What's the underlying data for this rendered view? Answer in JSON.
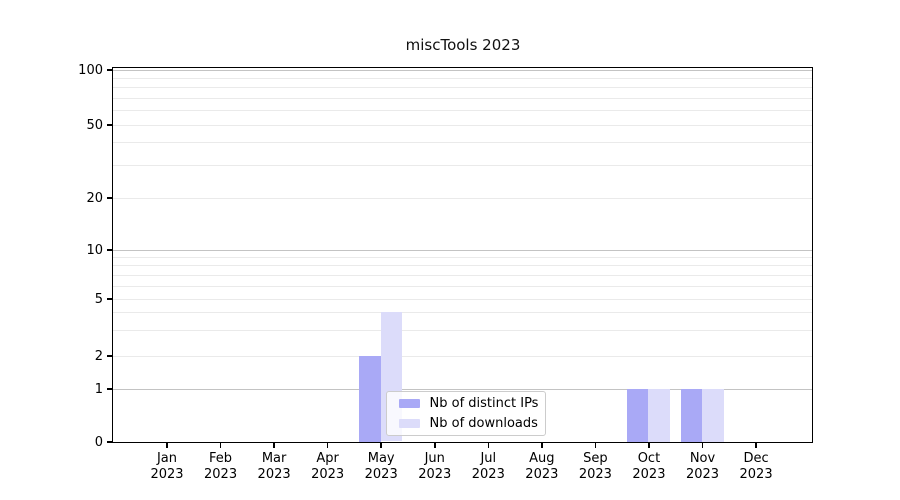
{
  "chart_data": {
    "type": "bar",
    "title": "miscTools 2023",
    "categories": [
      "Jan",
      "Feb",
      "Mar",
      "Apr",
      "May",
      "Jun",
      "Jul",
      "Aug",
      "Sep",
      "Oct",
      "Nov",
      "Dec"
    ],
    "x_tick_year": "2023",
    "series": [
      {
        "name": "Nb of distinct IPs",
        "color": "#a9a9f6",
        "values": [
          0,
          0,
          0,
          0,
          2,
          0,
          0,
          0,
          0,
          1,
          1,
          0
        ]
      },
      {
        "name": "Nb of downloads",
        "color": "#dcdcfa",
        "values": [
          0,
          0,
          0,
          0,
          4,
          0,
          0,
          0,
          0,
          1,
          1,
          0
        ]
      }
    ],
    "yscale": "symlog",
    "ylim": [
      0,
      100
    ],
    "yticks": [
      0,
      1,
      2,
      5,
      10,
      20,
      50,
      100
    ],
    "grid_major_values": [
      1,
      10,
      100
    ],
    "grid_minor_values": [
      2,
      3,
      4,
      5,
      6,
      7,
      8,
      9,
      20,
      30,
      40,
      50,
      60,
      70,
      80,
      90
    ],
    "grid": true,
    "legend_position": "lower-center-inside"
  },
  "colors": {
    "bar_distinct_ips": "#a9a9f6",
    "bar_downloads": "#dcdcfa",
    "grid_major": "#c3c3c3",
    "grid_minor": "#eaeaea",
    "axis": "#000000",
    "background": "#ffffff"
  }
}
